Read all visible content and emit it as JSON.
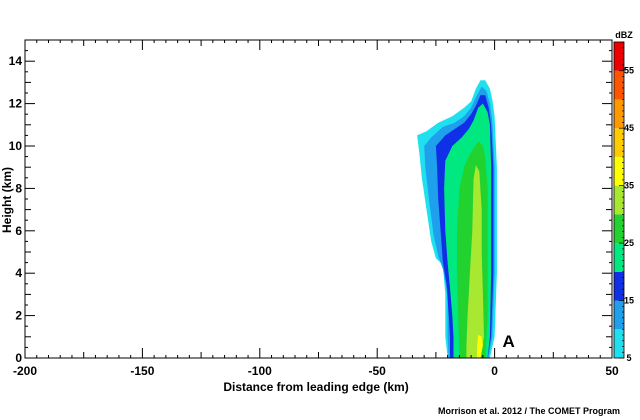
{
  "chart_data": {
    "type": "heatmap",
    "xlabel": "Distance from leading edge (km)",
    "ylabel": "Height (km)",
    "xlim": [
      -200,
      50
    ],
    "ylim": [
      0,
      15
    ],
    "x_ticks": [
      -200,
      -150,
      -100,
      -50,
      0,
      50
    ],
    "y_ticks": [
      0,
      2,
      4,
      6,
      8,
      10,
      12,
      14
    ],
    "annotation": {
      "text": "A",
      "x": 6,
      "y": 0.8
    },
    "credit": "Morrison et al. 2012 / The COMET Program",
    "colorbar": {
      "title": "dBZ",
      "tick_labels": [
        "5",
        "15",
        "25",
        "35",
        "45",
        "55"
      ],
      "levels": [
        5,
        10,
        15,
        20,
        25,
        30,
        35,
        40,
        45,
        50,
        55,
        60
      ],
      "colors": [
        "#20e0f0",
        "#1ea0ec",
        "#1030e8",
        "#00e880",
        "#22d22e",
        "#a8e830",
        "#ffff00",
        "#ffcc00",
        "#ff9900",
        "#ff5500",
        "#ee0000"
      ]
    },
    "contours": [
      {
        "level": 5,
        "color": "#20e0f0",
        "points": [
          [
            -2,
            0
          ],
          [
            0,
            1
          ],
          [
            1,
            4
          ],
          [
            1,
            9
          ],
          [
            0,
            11.4
          ],
          [
            -1,
            12.2
          ],
          [
            -2,
            12.7
          ],
          [
            -4,
            13.1
          ],
          [
            -6,
            13.1
          ],
          [
            -8,
            12.7
          ],
          [
            -10,
            12.1
          ],
          [
            -13,
            11.8
          ],
          [
            -18,
            11.4
          ],
          [
            -24,
            11.1
          ],
          [
            -29,
            10.7
          ],
          [
            -33,
            10.5
          ],
          [
            -32,
            9.6
          ],
          [
            -31,
            8.5
          ],
          [
            -29,
            7
          ],
          [
            -27,
            5.5
          ],
          [
            -25,
            4.7
          ],
          [
            -22,
            4.4
          ],
          [
            -21,
            3
          ],
          [
            -21,
            1
          ],
          [
            -20,
            0
          ]
        ]
      },
      {
        "level": 10,
        "color": "#1ea0ec",
        "points": [
          [
            -2.5,
            0
          ],
          [
            -1,
            1
          ],
          [
            0,
            4
          ],
          [
            0,
            9
          ],
          [
            -1,
            11.2
          ],
          [
            -2,
            12
          ],
          [
            -3.5,
            12.6
          ],
          [
            -5.5,
            12.8
          ],
          [
            -8,
            12.3
          ],
          [
            -10,
            11.8
          ],
          [
            -13,
            11.4
          ],
          [
            -17,
            11.1
          ],
          [
            -22,
            10.9
          ],
          [
            -27,
            10.4
          ],
          [
            -30,
            10
          ],
          [
            -29.5,
            9
          ],
          [
            -28,
            7.5
          ],
          [
            -26,
            5.8
          ],
          [
            -24,
            4.8
          ],
          [
            -22,
            4.2
          ],
          [
            -20,
            3
          ],
          [
            -20,
            1
          ],
          [
            -19.5,
            0
          ]
        ]
      },
      {
        "level": 15,
        "color": "#1030e8",
        "points": [
          [
            -3,
            0
          ],
          [
            -1.5,
            1
          ],
          [
            -0.5,
            4
          ],
          [
            -0.5,
            9
          ],
          [
            -1.5,
            11
          ],
          [
            -2.5,
            11.8
          ],
          [
            -4,
            12.4
          ],
          [
            -6,
            12.4
          ],
          [
            -8,
            11.9
          ],
          [
            -10,
            11.5
          ],
          [
            -13,
            11.1
          ],
          [
            -17,
            10.8
          ],
          [
            -21,
            10.5
          ],
          [
            -25,
            10
          ],
          [
            -24.5,
            9
          ],
          [
            -24,
            7.5
          ],
          [
            -23,
            6
          ],
          [
            -22,
            4.5
          ],
          [
            -20.5,
            3.5
          ],
          [
            -19.5,
            2
          ],
          [
            -19,
            1
          ],
          [
            -19,
            0
          ]
        ]
      },
      {
        "level": 20,
        "color": "#00e880",
        "points": [
          [
            -3,
            0
          ],
          [
            -2,
            1
          ],
          [
            -1.5,
            4
          ],
          [
            -1.5,
            9
          ],
          [
            -2,
            11
          ],
          [
            -3,
            11.6
          ],
          [
            -5,
            12
          ],
          [
            -7,
            11.8
          ],
          [
            -9,
            11.2
          ],
          [
            -11,
            10.8
          ],
          [
            -14,
            10.4
          ],
          [
            -18,
            10
          ],
          [
            -21,
            9.3
          ],
          [
            -21.5,
            8
          ],
          [
            -21,
            6
          ],
          [
            -20,
            4.5
          ],
          [
            -19,
            3.3
          ],
          [
            -18,
            2
          ],
          [
            -17.5,
            1
          ],
          [
            -17.5,
            0
          ]
        ]
      },
      {
        "level": 25,
        "color": "#22d22e",
        "points": [
          [
            -4,
            0
          ],
          [
            -3,
            2
          ],
          [
            -3,
            4
          ],
          [
            -3,
            8
          ],
          [
            -4,
            9.5
          ],
          [
            -5,
            10
          ],
          [
            -7,
            10.2
          ],
          [
            -9,
            9.9
          ],
          [
            -11,
            9.5
          ],
          [
            -13,
            9
          ],
          [
            -15,
            8
          ],
          [
            -16,
            6
          ],
          [
            -16,
            4
          ],
          [
            -15.5,
            2
          ],
          [
            -15,
            0
          ]
        ]
      },
      {
        "level": 30,
        "color": "#a8e830",
        "points": [
          [
            -6,
            0
          ],
          [
            -4.5,
            1
          ],
          [
            -5,
            3
          ],
          [
            -5.5,
            5
          ],
          [
            -5.5,
            7
          ],
          [
            -6.5,
            8.8
          ],
          [
            -8,
            9.1
          ],
          [
            -9,
            8.4
          ],
          [
            -9.5,
            6
          ],
          [
            -10.5,
            4
          ],
          [
            -11.5,
            2
          ],
          [
            -12,
            0.5
          ],
          [
            -12,
            0
          ]
        ]
      },
      {
        "level": 35,
        "color": "#ffff00",
        "points": [
          [
            -6,
            0
          ],
          [
            -5,
            0.6
          ],
          [
            -5.5,
            1
          ],
          [
            -7,
            1.1
          ],
          [
            -7.5,
            0.5
          ],
          [
            -7.5,
            0
          ]
        ]
      }
    ]
  }
}
